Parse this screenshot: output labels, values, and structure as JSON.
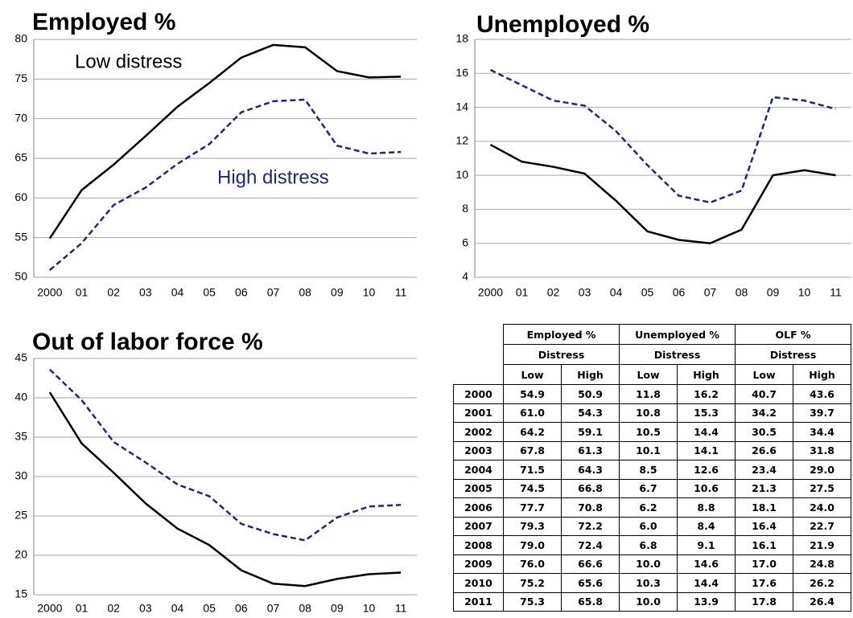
{
  "chart_data": [
    {
      "type": "line",
      "title": "Employed %",
      "categories": [
        "2000",
        "01",
        "02",
        "03",
        "04",
        "05",
        "06",
        "07",
        "08",
        "09",
        "10",
        "11"
      ],
      "series": [
        {
          "name": "Low distress",
          "color": "#000000",
          "dash": false,
          "values": [
            54.9,
            61.0,
            64.2,
            67.8,
            71.5,
            74.5,
            77.7,
            79.3,
            79.0,
            76.0,
            75.2,
            75.3
          ]
        },
        {
          "name": "High distress",
          "color": "#1f2a6b",
          "dash": true,
          "values": [
            50.9,
            54.3,
            59.1,
            61.3,
            64.3,
            66.8,
            70.8,
            72.2,
            72.4,
            66.6,
            65.6,
            65.8
          ]
        }
      ],
      "ylim": [
        50,
        80
      ],
      "yticks": [
        50,
        55,
        60,
        65,
        70,
        75,
        80
      ],
      "grid": true
    },
    {
      "type": "line",
      "title": "Unemployed %",
      "categories": [
        "2000",
        "01",
        "02",
        "03",
        "04",
        "05",
        "06",
        "07",
        "08",
        "09",
        "10",
        "11"
      ],
      "series": [
        {
          "color": "#000000",
          "dash": false,
          "values": [
            11.8,
            10.8,
            10.5,
            10.1,
            8.5,
            6.7,
            6.2,
            6.0,
            6.8,
            10.0,
            10.3,
            10.0
          ]
        },
        {
          "color": "#1f2a6b",
          "dash": true,
          "values": [
            16.2,
            15.3,
            14.4,
            14.1,
            12.6,
            10.6,
            8.8,
            8.4,
            9.1,
            14.6,
            14.4,
            13.9
          ]
        }
      ],
      "ylim": [
        4,
        18
      ],
      "yticks": [
        4,
        6,
        8,
        10,
        12,
        14,
        16,
        18
      ],
      "grid": true
    },
    {
      "type": "line",
      "title": "Out of labor force %",
      "categories": [
        "2000",
        "01",
        "02",
        "03",
        "04",
        "05",
        "06",
        "07",
        "08",
        "09",
        "10",
        "11"
      ],
      "series": [
        {
          "color": "#000000",
          "dash": false,
          "values": [
            40.7,
            34.2,
            30.5,
            26.6,
            23.4,
            21.3,
            18.1,
            16.4,
            16.1,
            17.0,
            17.6,
            17.8
          ]
        },
        {
          "color": "#1f2a6b",
          "dash": true,
          "values": [
            43.6,
            39.7,
            34.4,
            31.8,
            29.0,
            27.5,
            24.0,
            22.7,
            21.9,
            24.8,
            26.2,
            26.4
          ]
        }
      ],
      "ylim": [
        15,
        45
      ],
      "yticks": [
        15,
        20,
        25,
        30,
        35,
        40,
        45
      ],
      "grid": true
    }
  ],
  "table": {
    "groups": [
      "Employed %",
      "Unemployed %",
      "OLF %"
    ],
    "subgroups": [
      "Distress",
      "Distress",
      "Distress"
    ],
    "columns": [
      "Low",
      "High",
      "Low",
      "High",
      "Low",
      "High"
    ],
    "rows": [
      [
        "2000",
        "54.9",
        "50.9",
        "11.8",
        "16.2",
        "40.7",
        "43.6"
      ],
      [
        "2001",
        "61.0",
        "54.3",
        "10.8",
        "15.3",
        "34.2",
        "39.7"
      ],
      [
        "2002",
        "64.2",
        "59.1",
        "10.5",
        "14.4",
        "30.5",
        "34.4"
      ],
      [
        "2003",
        "67.8",
        "61.3",
        "10.1",
        "14.1",
        "26.6",
        "31.8"
      ],
      [
        "2004",
        "71.5",
        "64.3",
        "8.5",
        "12.6",
        "23.4",
        "29.0"
      ],
      [
        "2005",
        "74.5",
        "66.8",
        "6.7",
        "10.6",
        "21.3",
        "27.5"
      ],
      [
        "2006",
        "77.7",
        "70.8",
        "6.2",
        "8.8",
        "18.1",
        "24.0"
      ],
      [
        "2007",
        "79.3",
        "72.2",
        "6.0",
        "8.4",
        "16.4",
        "22.7"
      ],
      [
        "2008",
        "79.0",
        "72.4",
        "6.8",
        "9.1",
        "16.1",
        "21.9"
      ],
      [
        "2009",
        "76.0",
        "66.6",
        "10.0",
        "14.6",
        "17.0",
        "24.8"
      ],
      [
        "2010",
        "75.2",
        "65.6",
        "10.3",
        "14.4",
        "17.6",
        "26.2"
      ],
      [
        "2011",
        "75.3",
        "65.8",
        "10.0",
        "13.9",
        "17.8",
        "26.4"
      ]
    ]
  }
}
